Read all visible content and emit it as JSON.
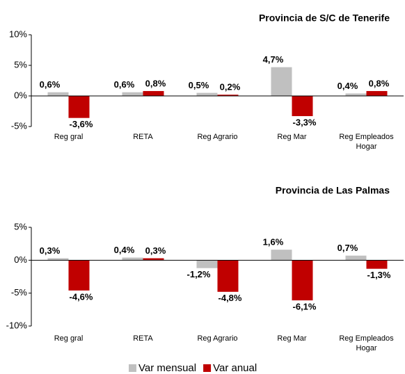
{
  "chart_data": [
    {
      "type": "bar",
      "title": "Provincia de S/C de Tenerife",
      "categories": [
        "Reg gral",
        "RETA",
        "Reg Agrario",
        "Reg Mar",
        "Reg Empleados Hogar"
      ],
      "series": [
        {
          "name": "Var mensual",
          "color": "#c0c0c0",
          "values": [
            0.6,
            0.6,
            0.5,
            4.7,
            0.4
          ],
          "value_labels": [
            "0,6%",
            "0,6%",
            "0,5%",
            "4,7%",
            "0,4%"
          ]
        },
        {
          "name": "Var anual",
          "color": "#c00000",
          "values": [
            -3.6,
            0.8,
            0.2,
            -3.3,
            0.8
          ],
          "value_labels": [
            "-3,6%",
            "0,8%",
            "0,2%",
            "-3,3%",
            "0,8%"
          ]
        }
      ],
      "ylim": [
        -5,
        10
      ],
      "yticks": [
        {
          "value": -5,
          "label": "-5%"
        },
        {
          "value": 0,
          "label": "0%"
        },
        {
          "value": 5,
          "label": "5%"
        },
        {
          "value": 10,
          "label": "10%"
        }
      ]
    },
    {
      "type": "bar",
      "title": "Provincia de Las Palmas",
      "categories": [
        "Reg gral",
        "RETA",
        "Reg Agrario",
        "Reg Mar",
        "Reg Empleados Hogar"
      ],
      "series": [
        {
          "color": "#c0c0c0",
          "values": [
            0.3,
            0.4,
            -1.2,
            1.6,
            0.7
          ],
          "value_labels": [
            "0,3%",
            "0,4%",
            "-1,2%",
            "1,6%",
            "0,7%"
          ]
        },
        {
          "color": "#c00000",
          "values": [
            -4.6,
            0.3,
            -4.8,
            -6.1,
            -1.3
          ],
          "value_labels": [
            "-4,6%",
            "0,3%",
            "-4,8%",
            "-6,1%",
            "-1,3%"
          ]
        }
      ],
      "ylim": [
        -10,
        5
      ],
      "yticks": [
        {
          "value": -10,
          "label": "-10%"
        },
        {
          "value": -5,
          "label": "-5%"
        },
        {
          "value": 0,
          "label": "0%"
        },
        {
          "value": 5,
          "label": "5%"
        }
      ]
    }
  ]
}
